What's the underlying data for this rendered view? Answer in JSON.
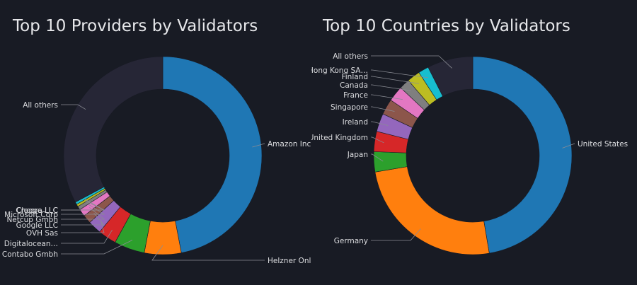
{
  "charts": [
    {
      "title": "Top 10 Providers by Validators",
      "chart_data": {
        "type": "pie",
        "donut": true,
        "title": "Top 10 Providers by Validators",
        "labels": [
          "Amazon Inc",
          "Helzner Onli…",
          "Contabo Gmbh",
          "Digitalocean…",
          "OVH Sas",
          "Google LLC",
          "Netcup Gmbh",
          "Microsoft Corp",
          "Chcoro LLC",
          "Croopa LLC",
          "All others"
        ],
        "values": [
          47.0,
          6.0,
          5.0,
          3.0,
          2.2,
          1.4,
          1.2,
          0.6,
          0.4,
          0.4,
          32.8
        ],
        "colors": [
          "#1f77b4",
          "#ff7f0e",
          "#2ca02c",
          "#d62728",
          "#9467bd",
          "#8c564b",
          "#e377c2",
          "#7f7f7f",
          "#bcbd22",
          "#17becf",
          "#262636"
        ]
      }
    },
    {
      "title": "Top 10 Countries by Validators",
      "chart_data": {
        "type": "pie",
        "donut": true,
        "title": "Top 10 Countries by Validators",
        "labels": [
          "United States",
          "Germany",
          "Japan",
          "United Kingdom",
          "Ireland",
          "Singapore",
          "France",
          "Canada",
          "Finland",
          "Hong Kong SA…",
          "All others"
        ],
        "values": [
          44.5,
          23.5,
          3.1,
          3.1,
          2.8,
          2.4,
          2.4,
          1.6,
          2.0,
          1.6,
          7.0
        ],
        "colors": [
          "#1f77b4",
          "#ff7f0e",
          "#2ca02c",
          "#d62728",
          "#9467bd",
          "#8c564b",
          "#e377c2",
          "#7f7f7f",
          "#bcbd22",
          "#17becf",
          "#262636"
        ]
      }
    }
  ]
}
